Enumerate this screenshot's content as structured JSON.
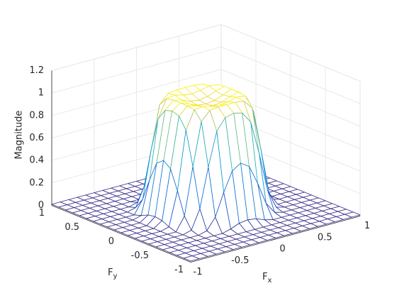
{
  "chart_data": {
    "type": "mesh",
    "xlabel": {
      "text": "F",
      "subscript": "x"
    },
    "ylabel": {
      "text": "F",
      "subscript": "y"
    },
    "zlabel": "Magnitude",
    "xlim": [
      -1,
      1
    ],
    "ylim": [
      -1,
      1
    ],
    "zlim": [
      0,
      1.2
    ],
    "xticks": [
      -1,
      -0.5,
      0,
      0.5,
      1
    ],
    "yticks": [
      -1,
      -0.5,
      0,
      0.5,
      1
    ],
    "zticks": [
      0,
      0.2,
      0.4,
      0.6,
      0.8,
      1,
      1.2
    ],
    "grid": true,
    "colormap": "parula",
    "x": [
      -1,
      -0.9,
      -0.8,
      -0.7,
      -0.6,
      -0.5,
      -0.4,
      -0.3,
      -0.2,
      -0.1,
      0,
      0.1,
      0.2,
      0.3,
      0.4,
      0.5,
      0.6,
      0.7,
      0.8,
      0.9,
      1
    ],
    "y": [
      -1,
      -0.9,
      -0.8,
      -0.7,
      -0.6,
      -0.5,
      -0.4,
      -0.3,
      -0.2,
      -0.1,
      0,
      0.1,
      0.2,
      0.3,
      0.4,
      0.5,
      0.6,
      0.7,
      0.8,
      0.9,
      1
    ],
    "z": [
      [
        0.01,
        0.01,
        0.01,
        0.01,
        0.01,
        0.01,
        0.01,
        0.01,
        0.01,
        0.01,
        0.01,
        0.01,
        0.01,
        0.01,
        0.01,
        0.01,
        0.01,
        0.01,
        0.01,
        0.01,
        0.01
      ],
      [
        0.01,
        0.01,
        0.01,
        0.01,
        0.01,
        0.01,
        0.01,
        0.01,
        0.01,
        0.01,
        0.01,
        0.01,
        0.01,
        0.01,
        0.01,
        0.01,
        0.01,
        0.01,
        0.01,
        0.01,
        0.01
      ],
      [
        0.01,
        0.01,
        0.01,
        0.01,
        0.01,
        0.01,
        0.01,
        0.01,
        0.01,
        0.01,
        0.01,
        0.01,
        0.01,
        0.01,
        0.01,
        0.01,
        0.01,
        0.01,
        0.01,
        0.01,
        0.01
      ],
      [
        0.01,
        0.01,
        0.01,
        0.01,
        0.01,
        0.01,
        0.01,
        0.01,
        0.01,
        0.01,
        0.01,
        0.01,
        0.01,
        0.01,
        0.01,
        0.01,
        0.01,
        0.01,
        0.01,
        0.01,
        0.01
      ],
      [
        0.01,
        0.01,
        0.01,
        0.01,
        0.01,
        0.01,
        0.01,
        0.01,
        0.03,
        0.06,
        0.07,
        0.06,
        0.03,
        0.01,
        0.01,
        0.01,
        0.01,
        0.01,
        0.01,
        0.01,
        0.01
      ],
      [
        0.01,
        0.01,
        0.01,
        0.01,
        0.01,
        0.01,
        0.03,
        0.13,
        0.33,
        0.5,
        0.55,
        0.5,
        0.33,
        0.13,
        0.03,
        0.01,
        0.01,
        0.01,
        0.01,
        0.01,
        0.01
      ],
      [
        0.01,
        0.01,
        0.01,
        0.01,
        0.01,
        0.03,
        0.2,
        0.55,
        0.85,
        0.95,
        0.97,
        0.95,
        0.85,
        0.55,
        0.2,
        0.03,
        0.01,
        0.01,
        0.01,
        0.01,
        0.01
      ],
      [
        0.01,
        0.01,
        0.01,
        0.01,
        0.01,
        0.13,
        0.55,
        0.93,
        1.01,
        1.02,
        1.02,
        1.02,
        1.01,
        0.93,
        0.55,
        0.13,
        0.01,
        0.01,
        0.01,
        0.01,
        0.01
      ],
      [
        0.01,
        0.01,
        0.01,
        0.01,
        0.03,
        0.33,
        0.85,
        1.01,
        1.02,
        1.0,
        0.99,
        1.0,
        1.02,
        1.01,
        0.85,
        0.33,
        0.03,
        0.01,
        0.01,
        0.01,
        0.01
      ],
      [
        0.01,
        0.01,
        0.01,
        0.01,
        0.06,
        0.5,
        0.95,
        1.02,
        1.0,
        0.97,
        0.96,
        0.97,
        1.0,
        1.02,
        0.95,
        0.5,
        0.06,
        0.01,
        0.01,
        0.01,
        0.01
      ],
      [
        0.01,
        0.01,
        0.01,
        0.01,
        0.07,
        0.55,
        0.97,
        1.02,
        0.99,
        0.96,
        0.95,
        0.96,
        0.99,
        1.02,
        0.97,
        0.55,
        0.07,
        0.01,
        0.01,
        0.01,
        0.01
      ],
      [
        0.01,
        0.01,
        0.01,
        0.01,
        0.06,
        0.5,
        0.95,
        1.02,
        1.0,
        0.97,
        0.96,
        0.97,
        1.0,
        1.02,
        0.95,
        0.5,
        0.06,
        0.01,
        0.01,
        0.01,
        0.01
      ],
      [
        0.01,
        0.01,
        0.01,
        0.01,
        0.03,
        0.33,
        0.85,
        1.01,
        1.02,
        1.0,
        0.99,
        1.0,
        1.02,
        1.01,
        0.85,
        0.33,
        0.03,
        0.01,
        0.01,
        0.01,
        0.01
      ],
      [
        0.01,
        0.01,
        0.01,
        0.01,
        0.01,
        0.13,
        0.55,
        0.93,
        1.01,
        1.02,
        1.02,
        1.02,
        1.01,
        0.93,
        0.55,
        0.13,
        0.01,
        0.01,
        0.01,
        0.01,
        0.01
      ],
      [
        0.01,
        0.01,
        0.01,
        0.01,
        0.01,
        0.03,
        0.2,
        0.55,
        0.85,
        0.95,
        0.97,
        0.95,
        0.85,
        0.55,
        0.2,
        0.03,
        0.01,
        0.01,
        0.01,
        0.01,
        0.01
      ],
      [
        0.01,
        0.01,
        0.01,
        0.01,
        0.01,
        0.01,
        0.03,
        0.13,
        0.33,
        0.5,
        0.55,
        0.5,
        0.33,
        0.13,
        0.03,
        0.01,
        0.01,
        0.01,
        0.01,
        0.01,
        0.01
      ],
      [
        0.01,
        0.01,
        0.01,
        0.01,
        0.01,
        0.01,
        0.01,
        0.01,
        0.03,
        0.06,
        0.07,
        0.06,
        0.03,
        0.01,
        0.01,
        0.01,
        0.01,
        0.01,
        0.01,
        0.01,
        0.01
      ],
      [
        0.01,
        0.01,
        0.01,
        0.01,
        0.01,
        0.01,
        0.01,
        0.01,
        0.01,
        0.01,
        0.01,
        0.01,
        0.01,
        0.01,
        0.01,
        0.01,
        0.01,
        0.01,
        0.01,
        0.01,
        0.01
      ],
      [
        0.01,
        0.01,
        0.01,
        0.01,
        0.01,
        0.01,
        0.01,
        0.01,
        0.01,
        0.01,
        0.01,
        0.01,
        0.01,
        0.01,
        0.01,
        0.01,
        0.01,
        0.01,
        0.01,
        0.01,
        0.01
      ],
      [
        0.01,
        0.01,
        0.01,
        0.01,
        0.01,
        0.01,
        0.01,
        0.01,
        0.01,
        0.01,
        0.01,
        0.01,
        0.01,
        0.01,
        0.01,
        0.01,
        0.01,
        0.01,
        0.01,
        0.01,
        0.01
      ],
      [
        0.01,
        0.01,
        0.01,
        0.01,
        0.01,
        0.01,
        0.01,
        0.01,
        0.01,
        0.01,
        0.01,
        0.01,
        0.01,
        0.01,
        0.01,
        0.01,
        0.01,
        0.01,
        0.01,
        0.01,
        0.01
      ]
    ]
  }
}
